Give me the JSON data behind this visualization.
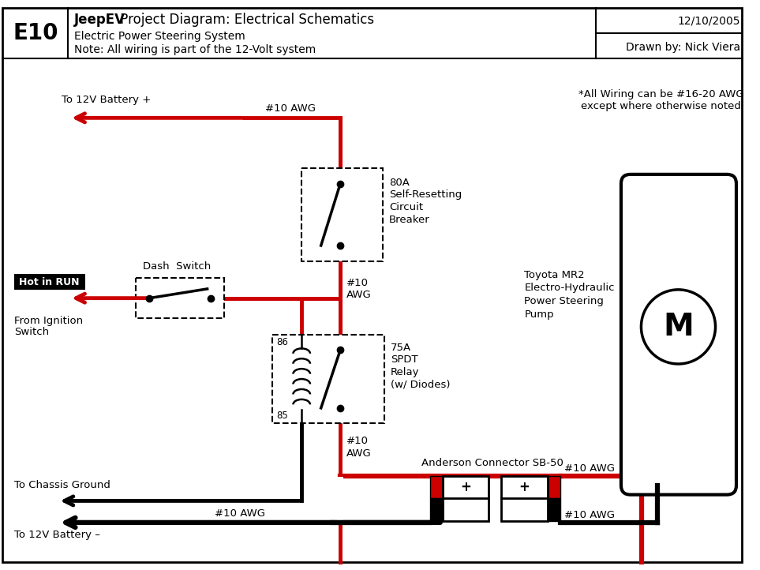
{
  "title_bold": "JeepEV",
  "title_rest": " Project Diagram: Electrical Schematics",
  "subtitle1": "Electric Power Steering System",
  "subtitle2": "Note: All wiring is part of the 12-Volt system",
  "date": "12/10/2005",
  "drawn_by": "Drawn by: Nick Viera",
  "diagram_id": "E10",
  "note": "*All Wiring can be #16-20 AWG\nexcept where otherwise noted",
  "wire_color_red": "#CC0000",
  "wire_color_black": "#000000",
  "bg_color": "#FFFFFF"
}
